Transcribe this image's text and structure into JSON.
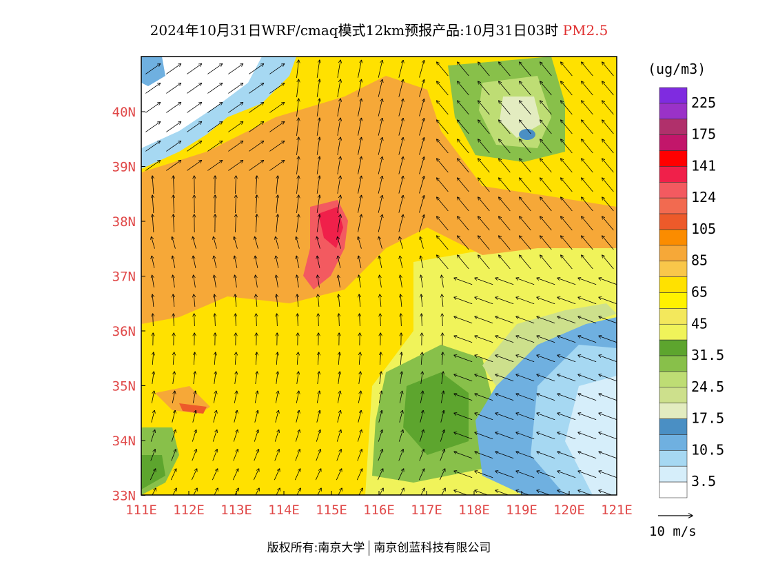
{
  "title": {
    "main": "2024年10月31日WRF/cmaq模式12km预报产品:10月31日03时",
    "species": "PM2.5",
    "species_color": "#e03030"
  },
  "map": {
    "lon_labels": [
      "111E",
      "112E",
      "113E",
      "114E",
      "115E",
      "116E",
      "117E",
      "118E",
      "119E",
      "120E",
      "121E"
    ],
    "lat_labels": [
      "40N",
      "39N",
      "38N",
      "37N",
      "36N",
      "35N",
      "34N",
      "33N"
    ],
    "axis_color": "#e04848"
  },
  "legend": {
    "unit": "(ug/m3)",
    "bins": [
      {
        "color": "#7f2be0",
        "label": "225"
      },
      {
        "color": "#9a32c8",
        "label": ""
      },
      {
        "color": "#b0306b",
        "label": "175"
      },
      {
        "color": "#c2166a",
        "label": ""
      },
      {
        "color": "#ff0000",
        "label": "141"
      },
      {
        "color": "#f0204a",
        "label": ""
      },
      {
        "color": "#f35a60",
        "label": "124"
      },
      {
        "color": "#f26a50",
        "label": ""
      },
      {
        "color": "#ed5a2a",
        "label": "105"
      },
      {
        "color": "#fb8c00",
        "label": ""
      },
      {
        "color": "#f6a838",
        "label": "85"
      },
      {
        "color": "#f9c74a",
        "label": ""
      },
      {
        "color": "#ffe100",
        "label": "65"
      },
      {
        "color": "#fff200",
        "label": ""
      },
      {
        "color": "#f3e85c",
        "label": "45"
      },
      {
        "color": "#f0f35a",
        "label": ""
      },
      {
        "color": "#5da52e",
        "label": "31.5"
      },
      {
        "color": "#88c04a",
        "label": ""
      },
      {
        "color": "#bedd74",
        "label": "24.5"
      },
      {
        "color": "#cde08c",
        "label": ""
      },
      {
        "color": "#e3ecc0",
        "label": "17.5"
      },
      {
        "color": "#4a8fc4",
        "label": ""
      },
      {
        "color": "#6fb0e0",
        "label": "10.5"
      },
      {
        "color": "#a6d8f2",
        "label": ""
      },
      {
        "color": "#d6eefa",
        "label": "3.5"
      },
      {
        "color": "#ffffff",
        "label": ""
      }
    ]
  },
  "vector_key": {
    "label": "10 m/s"
  },
  "footer": {
    "left": "版权所有:南京大学",
    "right": "南京创蓝科技有限公司"
  }
}
